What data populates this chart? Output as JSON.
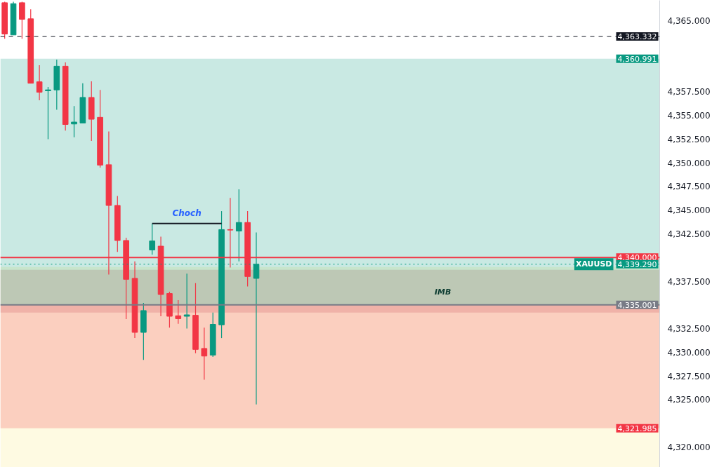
{
  "chart_data": {
    "type": "candlestick",
    "categories": [
      null,
      null,
      null,
      null,
      null,
      null,
      null,
      null,
      null,
      null,
      null,
      null,
      null,
      null,
      null,
      null,
      null,
      null,
      null,
      null,
      null,
      null,
      null,
      null,
      null,
      null,
      null,
      null,
      null,
      null,
      null,
      null,
      null,
      null,
      null,
      null,
      null,
      null,
      null,
      null,
      null,
      null,
      null,
      null,
      null,
      null,
      null,
      null,
      null,
      null,
      null,
      null,
      null,
      null,
      null,
      null,
      null,
      null,
      null,
      null,
      null,
      null,
      null,
      null,
      null,
      null,
      null,
      null,
      null,
      null,
      null,
      null,
      null,
      null,
      null,
      null
    ],
    "ohlc": [
      [
        4366.9,
        4367.0,
        4363.1,
        4363.6
      ],
      [
        4363.5,
        4367.0,
        4363.5,
        4366.8
      ],
      [
        4366.9,
        4367.0,
        4363.1,
        4365.15
      ],
      [
        4365.2,
        4366.2,
        4358.4,
        4358.4
      ],
      [
        4358.55,
        4360.3,
        4356.6,
        4357.45
      ],
      [
        4357.6,
        4358.0,
        4352.5,
        4357.7
      ],
      [
        4357.7,
        4360.9,
        4355.6,
        4360.2
      ],
      [
        4360.2,
        4360.6,
        4353.4,
        4354.05
      ],
      [
        4354.1,
        4356.0,
        4352.7,
        4354.3
      ],
      [
        4354.2,
        4358.4,
        4354.2,
        4356.9
      ],
      [
        4356.9,
        4358.6,
        4352.3,
        4354.6
      ],
      [
        4354.8,
        4357.7,
        4349.5,
        4349.75
      ],
      [
        4349.8,
        4353.3,
        4338.2,
        4345.5
      ],
      [
        4345.5,
        4346.5,
        4340.6,
        4341.8
      ],
      [
        4341.8,
        4342.1,
        4333.5,
        4337.7
      ],
      [
        4337.8,
        4339.6,
        4331.5,
        4332.1
      ],
      [
        4332.1,
        4335.2,
        4329.2,
        4334.4
      ],
      [
        4340.8,
        4343.6,
        4340.3,
        4341.75
      ],
      [
        4341.2,
        4342.2,
        4333.8,
        4336.1
      ],
      [
        4336.2,
        4336.4,
        4332.6,
        4333.8
      ],
      [
        4333.85,
        4335.5,
        4333.0,
        4333.55
      ],
      [
        4333.8,
        4338.3,
        4332.5,
        4333.95
      ],
      [
        4333.9,
        4337.3,
        4329.9,
        4330.3
      ],
      [
        4330.4,
        4332.6,
        4327.1,
        4329.6
      ],
      [
        4329.7,
        4334.2,
        4329.5,
        4332.95
      ],
      [
        4332.9,
        4344.9,
        4331.5,
        4342.95
      ],
      [
        4342.95,
        4346.3,
        4338.95,
        4342.9
      ],
      [
        4342.8,
        4347.2,
        4339.6,
        4343.7
      ],
      [
        4343.7,
        4344.9,
        4336.95,
        4338.0
      ],
      [
        4337.8,
        4342.65,
        4324.5,
        4339.29
      ],
      null,
      null,
      null,
      null,
      null,
      null,
      null,
      null,
      null,
      null,
      null,
      null,
      null,
      null,
      null,
      null,
      null,
      null,
      null,
      null,
      null,
      null,
      null,
      null,
      null,
      null,
      null,
      null,
      null,
      null,
      null,
      null,
      null,
      null,
      null,
      null,
      null,
      null,
      null,
      null,
      null,
      null,
      null,
      null,
      null,
      null
    ],
    "colors": [
      "#f23645",
      "#089981",
      "#f23645",
      "#f23645",
      "#f23645",
      "#089981",
      "#089981",
      "#f23645",
      "#089981",
      "#089981",
      "#f23645",
      "#f23645",
      "#f23645",
      "#f23645",
      "#f23645",
      "#f23645",
      "#089981",
      "#089981",
      "#f23645",
      "#f23645",
      "#f23645",
      "#089981",
      "#f23645",
      "#f23645",
      "#089981",
      "#089981",
      "#f23645",
      "#089981",
      "#f23645",
      "#089981",
      null,
      null,
      null,
      null,
      null,
      null,
      null,
      null,
      null,
      null,
      null,
      null,
      null,
      null,
      null,
      null,
      null,
      null,
      null,
      null,
      null,
      null,
      null,
      null,
      null,
      null,
      null,
      null,
      null,
      null,
      null,
      null,
      null,
      null,
      null,
      null,
      null,
      null,
      null,
      null,
      null,
      null,
      null,
      null,
      null,
      null
    ],
    "ylim": [
      4317.85,
      4367.15
    ],
    "yticks": [
      {
        "value": 4320,
        "label": "4,320.000"
      },
      {
        "value": 4325,
        "label": "4,325.000"
      },
      {
        "value": 4327.5,
        "label": "4,327.500"
      },
      {
        "value": 4330,
        "label": "4,330.000"
      },
      {
        "value": 4332.5,
        "label": "4,332.500"
      },
      {
        "value": 4337.5,
        "label": "4,337.500"
      },
      {
        "value": 4342.5,
        "label": "4,342.500"
      },
      {
        "value": 4345,
        "label": "4,345.000"
      },
      {
        "value": 4347.5,
        "label": "4,347.500"
      },
      {
        "value": 4350,
        "label": "4,350.000"
      },
      {
        "value": 4352.5,
        "label": "4,352.500"
      },
      {
        "value": 4355,
        "label": "4,355.000"
      },
      {
        "value": 4357.5,
        "label": "4,357.500"
      },
      {
        "value": 4365,
        "label": "4,365.000"
      }
    ],
    "tick_labels": "y",
    "grid": false,
    "bands": [
      {
        "axis": "y",
        "from": 4317.85,
        "to": 4339.0,
        "color": "#fce97a"
      },
      {
        "axis": "y",
        "from": 4334.2,
        "to": 4338.7,
        "color": "#c0505e"
      },
      {
        "axis": "y",
        "from": 4335.001,
        "to": 4360.991,
        "label": "4,360.991",
        "color": "#089981"
      },
      {
        "axis": "y",
        "from": 4321.985,
        "to": 4335.001,
        "label": "4,321.985",
        "color": "#f23645"
      }
    ],
    "ref_lines": [
      {
        "axis": "y",
        "value": 4363.332,
        "label": "4,363.332",
        "color": "#131722",
        "line_style": "dashed"
      },
      {
        "axis": "y",
        "value": 4340.0,
        "label": "4,340.000",
        "color": "#f23645"
      },
      {
        "axis": "y",
        "value": 4339.29,
        "label": "4,339.290",
        "color": "#089981",
        "line_style": "dotted"
      },
      {
        "axis": "y",
        "value": 4335.001,
        "label": "4,335.001",
        "color": "#787b86"
      }
    ],
    "series": [
      {
        "type": "line",
        "color": "#131722",
        "values": [
          null,
          null,
          null,
          null,
          null,
          null,
          null,
          null,
          null,
          null,
          null,
          null,
          null,
          null,
          null,
          null,
          null,
          4343.6,
          4343.6,
          4343.6,
          4343.6,
          4343.6,
          4343.6,
          4343.6,
          4343.6,
          4343.6,
          null,
          null,
          null,
          null,
          null,
          null,
          null,
          null,
          null,
          null,
          null,
          null,
          null,
          null,
          null,
          null,
          null,
          null,
          null,
          null,
          null,
          null,
          null,
          null,
          null,
          null,
          null,
          null,
          null,
          null,
          null,
          null,
          null,
          null,
          null,
          null,
          null,
          null,
          null,
          null,
          null,
          null,
          null,
          null,
          null,
          null,
          null,
          null,
          null,
          null
        ]
      }
    ],
    "annotations": [
      "Choch",
      "IMB",
      {
        "text": "XAUUSD",
        "y": 4339.29
      }
    ]
  }
}
